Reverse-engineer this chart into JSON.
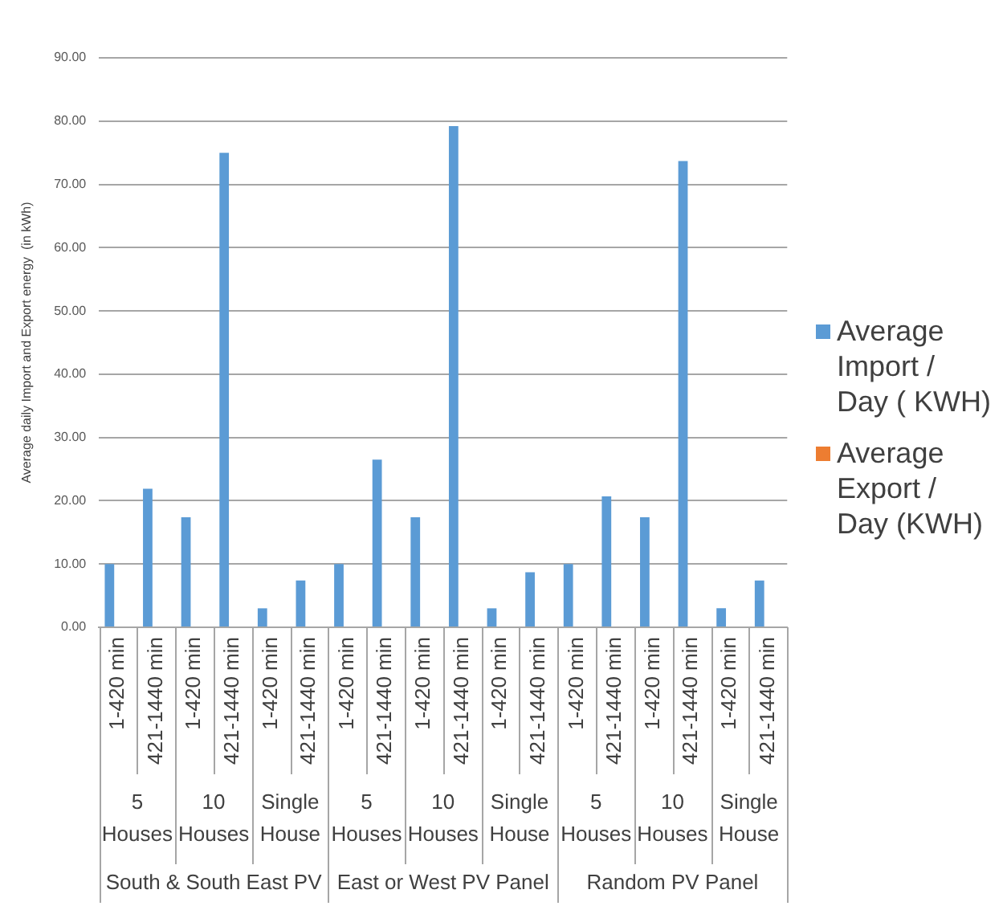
{
  "chart_data": {
    "type": "bar",
    "ylabel": "Average daily Import and Export energy  (in kWh)",
    "categories": [
      "1-420 min",
      "421-1440 min",
      "1-420 min",
      "421-1440 min",
      "1-420 min",
      "421-1440 min",
      "1-420 min",
      "421-1440 min",
      "1-420 min",
      "421-1440 min",
      "1-420 min",
      "421-1440 min",
      "1-420 min",
      "421-1440 min",
      "1-420 min",
      "421-1440 min",
      "1-420 min",
      "421-1440 min"
    ],
    "series": [
      {
        "name": "Average Import / Day ( KWH)",
        "color": "#5b9bd5",
        "values": [
          10.0,
          21.9,
          17.4,
          75.0,
          3.0,
          7.4,
          10.0,
          26.5,
          17.4,
          79.2,
          3.0,
          8.7,
          10.0,
          20.7,
          17.4,
          73.7,
          3.0,
          7.4
        ]
      },
      {
        "name": "Average Export / Day (KWH)",
        "color": "#ed7d31",
        "values": [
          0,
          0,
          0,
          0,
          0,
          0,
          0,
          0,
          0,
          0,
          0,
          0,
          0,
          0,
          0,
          0,
          0,
          0
        ]
      }
    ],
    "annotations": [
      "5 Houses",
      "10 Houses",
      "Single House",
      "5 Houses",
      "10 Houses",
      "Single House",
      "5 Houses",
      "10 Houses",
      "Single House",
      "South & South East PV",
      "East or West PV Panel",
      "Random PV Panel"
    ],
    "ylim": [
      0,
      90
    ],
    "yticks": [
      {
        "value": 0,
        "label": "0.00"
      },
      {
        "value": 10,
        "label": "10.00"
      },
      {
        "value": 20,
        "label": "20.00"
      },
      {
        "value": 30,
        "label": "30.00"
      },
      {
        "value": 40,
        "label": "40.00"
      },
      {
        "value": 50,
        "label": "50.00"
      },
      {
        "value": 60,
        "label": "60.00"
      },
      {
        "value": 70,
        "label": "70.00"
      },
      {
        "value": 80,
        "label": "80.00"
      },
      {
        "value": 90,
        "label": "90.00"
      }
    ],
    "grid": "y",
    "legend": "right"
  }
}
